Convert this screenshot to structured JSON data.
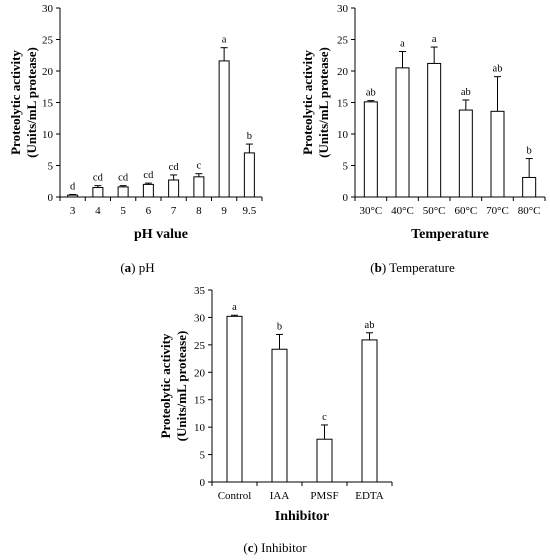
{
  "chart_data": [
    {
      "type": "bar",
      "panel": "(a)",
      "caption_letter": "a",
      "caption_text": "pH",
      "categories": [
        "3",
        "4",
        "5",
        "6",
        "7",
        "8",
        "9",
        "9.5"
      ],
      "values": [
        0.3,
        1.5,
        1.6,
        2.0,
        2.7,
        3.2,
        21.6,
        7.0
      ],
      "errors": [
        0.1,
        0.3,
        0.2,
        0.2,
        0.8,
        0.5,
        2.1,
        1.4
      ],
      "labels": [
        "d",
        "cd",
        "cd",
        "cd",
        "cd",
        "c",
        "a",
        "b"
      ],
      "xlabel": "pH value",
      "ylabel_line1": "Proteolytic activity",
      "ylabel_line2": "(Units/mL protease)",
      "yticks": [
        "0",
        "5",
        "10",
        "15",
        "20",
        "25",
        "30"
      ],
      "ylim": [
        0,
        30
      ],
      "grid": false
    },
    {
      "type": "bar",
      "panel": "(b)",
      "caption_letter": "b",
      "caption_text": "Temperature",
      "categories": [
        "30°C",
        "40°C",
        "50°C",
        "60°C",
        "70°C",
        "80°C"
      ],
      "values": [
        15.1,
        20.5,
        21.2,
        13.8,
        13.6,
        3.1
      ],
      "errors": [
        0.2,
        2.6,
        2.6,
        1.6,
        5.5,
        3.0
      ],
      "labels": [
        "ab",
        "a",
        "a",
        "ab",
        "ab",
        "b"
      ],
      "xlabel": "Temperature",
      "ylabel_line1": "Proteolytic activity",
      "ylabel_line2": "(Units/mL protease)",
      "yticks": [
        "0",
        "5",
        "10",
        "15",
        "20",
        "25",
        "30"
      ],
      "ylim": [
        0,
        30
      ],
      "grid": false
    },
    {
      "type": "bar",
      "panel": "(c)",
      "caption_letter": "c",
      "caption_text": "Inhibitor",
      "categories": [
        "Control",
        "IAA",
        "PMSF",
        "EDTA"
      ],
      "values": [
        30.2,
        24.2,
        7.8,
        25.9
      ],
      "errors": [
        0.2,
        2.7,
        2.6,
        1.3
      ],
      "labels": [
        "a",
        "b",
        "c",
        "ab"
      ],
      "xlabel": "Inhibitor",
      "ylabel_line1": "Proteolytic activity",
      "ylabel_line2": "(Units/mL protease)",
      "yticks": [
        "0",
        "5",
        "10",
        "15",
        "20",
        "25",
        "30",
        "35"
      ],
      "ylim": [
        0,
        35
      ],
      "grid": false
    }
  ]
}
